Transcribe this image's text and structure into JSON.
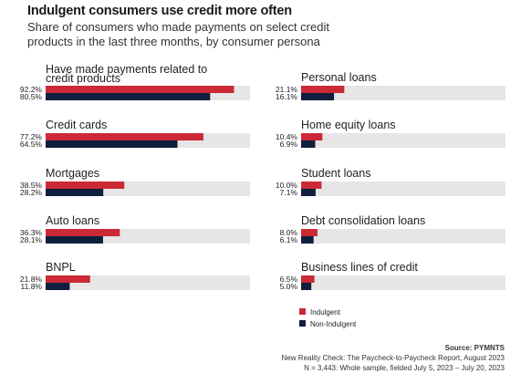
{
  "title": "Indulgent consumers use credit more often",
  "subtitle": "Share of consumers who made payments on select credit products in the last three months, by consumer persona",
  "colors": {
    "indulgent": "#cc2936",
    "non_indulgent": "#0f1f3d",
    "track": "#e6e6e6"
  },
  "chart_data": {
    "type": "bar",
    "orientation": "horizontal",
    "xlim": [
      0,
      100
    ],
    "unit": "%",
    "grid": false,
    "legend_placement": "bottom-right",
    "series": [
      {
        "name": "Indulgent",
        "color": "#cc2936"
      },
      {
        "name": "Non-Indulgent",
        "color": "#0f1f3d"
      }
    ],
    "categories": [
      {
        "label": "Have made payments related to credit products",
        "values": [
          92.2,
          80.5
        ],
        "labels": [
          "92.2%",
          "80.5%"
        ]
      },
      {
        "label": "Credit cards",
        "values": [
          77.2,
          64.5
        ],
        "labels": [
          "77.2%",
          "64.5%"
        ]
      },
      {
        "label": "Mortgages",
        "values": [
          38.5,
          28.2
        ],
        "labels": [
          "38.5%",
          "28.2%"
        ]
      },
      {
        "label": "Auto loans",
        "values": [
          36.3,
          28.1
        ],
        "labels": [
          "36.3%",
          "28.1%"
        ]
      },
      {
        "label": "BNPL",
        "values": [
          21.8,
          11.8
        ],
        "labels": [
          "21.8%",
          "11.8%"
        ]
      },
      {
        "label": "Personal loans",
        "values": [
          21.1,
          16.1
        ],
        "labels": [
          "21.1%",
          "16.1%"
        ]
      },
      {
        "label": "Home equity loans",
        "values": [
          10.4,
          6.9
        ],
        "labels": [
          "10.4%",
          "6.9%"
        ]
      },
      {
        "label": "Student loans",
        "values": [
          10.0,
          7.1
        ],
        "labels": [
          "10.0%",
          "7.1%"
        ]
      },
      {
        "label": "Debt consolidation loans",
        "values": [
          8.0,
          6.1
        ],
        "labels": [
          "8.0%",
          "6.1%"
        ]
      },
      {
        "label": "Business lines of credit",
        "values": [
          6.5,
          5.0
        ],
        "labels": [
          "6.5%",
          "5.0%"
        ]
      }
    ]
  },
  "footer": {
    "source": "Source: PYMNTS",
    "report": "New Reality Check: The Paycheck-to-Paycheck Report, August 2023",
    "sample": "N = 3,443: Whole sample, fielded July 5, 2023 – July 20, 2023"
  }
}
